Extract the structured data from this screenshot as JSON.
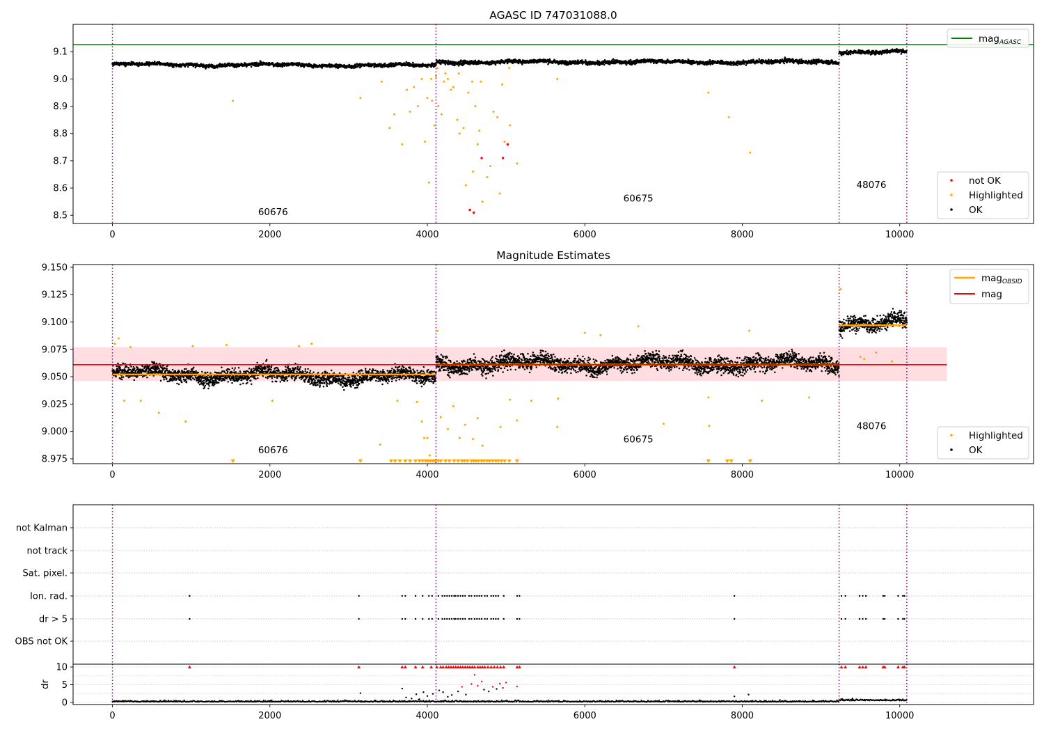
{
  "chart_data": [
    {
      "id": "p1",
      "type": "scatter",
      "title": "AGASC ID 747031088.0",
      "xlim": [
        -500,
        11700
      ],
      "ylim": [
        8.47,
        9.2
      ],
      "xticks": [
        0,
        2000,
        4000,
        6000,
        8000,
        10000
      ],
      "yticks": [
        8.5,
        8.6,
        8.7,
        8.8,
        8.9,
        9.0,
        9.1
      ],
      "ytick_labels": [
        "8.5",
        "8.6",
        "8.7",
        "8.8",
        "8.9",
        "9.0",
        "9.1"
      ],
      "hline": {
        "name": "mag_AGASC",
        "y": 9.126,
        "color": "#008000"
      },
      "obsid_boundaries": [
        0,
        4110,
        9230,
        10090
      ],
      "obsid_labels": [
        {
          "text": "60676",
          "x": 2040,
          "y": 8.5
        },
        {
          "text": "60675",
          "x": 6680,
          "y": 8.55
        },
        {
          "text": "48076",
          "x": 9640,
          "y": 8.6
        }
      ],
      "segments": [
        {
          "x0": 0,
          "x1": 4110,
          "center": 9.053,
          "spread": 0.009,
          "trend": -0.004
        },
        {
          "x0": 4110,
          "x1": 9230,
          "center": 9.062,
          "spread": 0.01,
          "trend": 0.0
        },
        {
          "x0": 9230,
          "x1": 10090,
          "center": 9.1,
          "spread": 0.01,
          "trend": 0.0
        }
      ],
      "highlighted": [
        [
          1530,
          8.92
        ],
        [
          3150,
          8.93
        ],
        [
          3420,
          8.99
        ],
        [
          3520,
          8.82
        ],
        [
          3580,
          8.87
        ],
        [
          3680,
          8.76
        ],
        [
          3780,
          8.88
        ],
        [
          3830,
          8.97
        ],
        [
          3880,
          8.9
        ],
        [
          3930,
          9.0
        ],
        [
          3970,
          8.77
        ],
        [
          4020,
          8.62
        ],
        [
          4060,
          8.92
        ],
        [
          4090,
          8.83
        ],
        [
          4140,
          8.9
        ],
        [
          4180,
          8.87
        ],
        [
          4210,
          8.99
        ],
        [
          4260,
          9.0
        ],
        [
          4330,
          8.97
        ],
        [
          4380,
          8.85
        ],
        [
          4410,
          8.8
        ],
        [
          4460,
          8.82
        ],
        [
          4490,
          8.61
        ],
        [
          4520,
          8.95
        ],
        [
          4580,
          8.66
        ],
        [
          4610,
          8.9
        ],
        [
          4640,
          8.76
        ],
        [
          4660,
          8.81
        ],
        [
          4700,
          8.55
        ],
        [
          4760,
          8.64
        ],
        [
          4800,
          8.68
        ],
        [
          4840,
          8.88
        ],
        [
          4890,
          8.86
        ],
        [
          4920,
          8.58
        ],
        [
          4980,
          8.77
        ],
        [
          5050,
          8.83
        ],
        [
          5140,
          8.69
        ],
        [
          5650,
          9.0
        ],
        [
          7570,
          8.95
        ],
        [
          7830,
          8.86
        ],
        [
          8100,
          8.73
        ],
        [
          4050,
          9.0
        ],
        [
          4110,
          9.01
        ],
        [
          4300,
          8.96
        ],
        [
          4570,
          8.99
        ],
        [
          3740,
          8.96
        ],
        [
          4000,
          8.93
        ],
        [
          4130,
          9.04
        ],
        [
          4230,
          9.02
        ],
        [
          4400,
          9.02
        ],
        [
          4680,
          8.99
        ],
        [
          4950,
          8.98
        ],
        [
          5040,
          9.04
        ]
      ],
      "not_ok": [
        [
          4540,
          8.52
        ],
        [
          4590,
          8.51
        ],
        [
          4690,
          8.71
        ],
        [
          4960,
          8.71
        ],
        [
          5020,
          8.76
        ]
      ],
      "legend": [
        "not OK",
        "Highlighted",
        "OK"
      ],
      "colors": {
        "ok": "#000000",
        "highlighted": "#ffa500",
        "not_ok": "#ff0000",
        "boundary": "#800080"
      }
    },
    {
      "id": "p2",
      "type": "scatter",
      "title": "Magnitude Estimates",
      "xlim": [
        -500,
        11700
      ],
      "ylim": [
        8.9705,
        9.1525
      ],
      "xticks": [
        0,
        2000,
        4000,
        6000,
        8000,
        10000
      ],
      "yticks": [
        8.975,
        9.0,
        9.025,
        9.05,
        9.075,
        9.1,
        9.125,
        9.15
      ],
      "ytick_labels": [
        "8.975",
        "9.000",
        "9.025",
        "9.050",
        "9.075",
        "9.100",
        "9.125",
        "9.150"
      ],
      "mag": {
        "name": "mag",
        "y": 9.061,
        "band": [
          9.046,
          9.077
        ],
        "x_extent": [
          -500,
          10600
        ],
        "color": "#ff0000"
      },
      "mag_obsid": [
        {
          "x0": 0,
          "x1": 4110,
          "y": 9.052
        },
        {
          "x0": 4110,
          "x1": 9230,
          "y": 9.061
        },
        {
          "x0": 9230,
          "x1": 10090,
          "y": 9.097
        }
      ],
      "obsid_boundaries": [
        0,
        4110,
        9230,
        10090
      ],
      "obsid_labels": [
        {
          "text": "60676",
          "x": 2040,
          "y": 8.98
        },
        {
          "text": "60675",
          "x": 6680,
          "y": 8.99
        },
        {
          "text": "48076",
          "x": 9640,
          "y": 9.002
        }
      ],
      "segments": [
        {
          "x0": 0,
          "x1": 4110,
          "center": 9.053,
          "spread": 0.009,
          "trend": -0.004
        },
        {
          "x0": 4110,
          "x1": 9230,
          "center": 9.062,
          "spread": 0.01,
          "trend": 0.0
        },
        {
          "x0": 9230,
          "x1": 10090,
          "center": 9.1,
          "spread": 0.01,
          "trend": 0.0
        }
      ],
      "highlighted": [
        [
          30,
          9.08
        ],
        [
          80,
          9.085
        ],
        [
          150,
          9.028
        ],
        [
          230,
          9.077
        ],
        [
          360,
          9.028
        ],
        [
          590,
          9.017
        ],
        [
          930,
          9.009
        ],
        [
          1020,
          9.078
        ],
        [
          1450,
          9.079
        ],
        [
          2030,
          9.028
        ],
        [
          2370,
          9.078
        ],
        [
          2530,
          9.08
        ],
        [
          3400,
          8.988
        ],
        [
          3620,
          9.028
        ],
        [
          3870,
          9.027
        ],
        [
          3930,
          9.009
        ],
        [
          3960,
          8.994
        ],
        [
          4000,
          8.994
        ],
        [
          4030,
          8.978
        ],
        [
          4130,
          9.092
        ],
        [
          4170,
          9.013
        ],
        [
          4260,
          9.002
        ],
        [
          4330,
          9.023
        ],
        [
          4410,
          8.994
        ],
        [
          4480,
          9.006
        ],
        [
          4580,
          8.993
        ],
        [
          4640,
          9.012
        ],
        [
          4700,
          8.987
        ],
        [
          4930,
          9.004
        ],
        [
          5050,
          9.029
        ],
        [
          5140,
          9.01
        ],
        [
          5320,
          9.028
        ],
        [
          5650,
          9.004
        ],
        [
          5660,
          9.03
        ],
        [
          6000,
          9.09
        ],
        [
          6200,
          9.088
        ],
        [
          6680,
          9.096
        ],
        [
          7000,
          9.007
        ],
        [
          7570,
          9.031
        ],
        [
          7580,
          9.005
        ],
        [
          8090,
          9.092
        ],
        [
          8250,
          9.028
        ],
        [
          8850,
          9.031
        ],
        [
          9250,
          9.13
        ],
        [
          9500,
          9.068
        ],
        [
          9550,
          9.066
        ],
        [
          9700,
          9.072
        ],
        [
          9900,
          9.064
        ],
        [
          10080,
          9.127
        ]
      ],
      "below_axis": [
        1530,
        3150,
        3540,
        3590,
        3650,
        3720,
        3780,
        3850,
        3900,
        3940,
        3980,
        4010,
        4040,
        4070,
        4100,
        4140,
        4170,
        4230,
        4280,
        4340,
        4390,
        4440,
        4470,
        4510,
        4560,
        4590,
        4620,
        4650,
        4690,
        4720,
        4760,
        4790,
        4830,
        4870,
        4900,
        4940,
        4980,
        5040,
        5140,
        7570,
        7810,
        7860,
        8100
      ],
      "legend": [
        "mag_OBSID",
        "mag",
        "Highlighted",
        "OK"
      ],
      "colors": {
        "ok": "#000000",
        "highlighted": "#ffa500",
        "mag": "#ff0000",
        "mag_obsid": "#ffa500",
        "band": "#ffdde0",
        "boundary": "#800080"
      }
    },
    {
      "id": "p3",
      "type": "scatter",
      "title": "",
      "xlim": [
        -500,
        11700
      ],
      "xticks": [
        0,
        2000,
        4000,
        6000,
        8000,
        10000
      ],
      "flag_labels": [
        "not Kalman",
        "not track",
        "Sat. pixel.",
        "Ion. rad.",
        "dr > 5",
        "OBS not OK"
      ],
      "flag_points": {
        "Ion. rad.": [
          980,
          3130,
          3680,
          3720,
          3850,
          3940,
          4020,
          4060,
          4140,
          4190,
          4220,
          4250,
          4280,
          4310,
          4340,
          4360,
          4390,
          4420,
          4450,
          4480,
          4530,
          4560,
          4600,
          4630,
          4660,
          4690,
          4730,
          4760,
          4810,
          4840,
          4870,
          4900,
          4970,
          5140,
          5170,
          7900,
          9260,
          9310,
          9490,
          9530,
          9570,
          9790,
          9810,
          9980,
          10040,
          10060
        ],
        "dr > 5": [
          980,
          3130,
          3680,
          3720,
          3850,
          3940,
          4020,
          4060,
          4140,
          4190,
          4220,
          4250,
          4280,
          4310,
          4340,
          4360,
          4390,
          4420,
          4450,
          4480,
          4530,
          4560,
          4600,
          4630,
          4660,
          4690,
          4730,
          4760,
          4810,
          4840,
          4870,
          4900,
          4970,
          5140,
          5170,
          7900,
          9260,
          9310,
          9490,
          9530,
          9570,
          9790,
          9810,
          9980,
          10040,
          10060
        ]
      },
      "dr": {
        "ylabel": "dr",
        "ylim": [
          -0.6,
          10.8
        ],
        "yticks": [
          0,
          5,
          10
        ],
        "clip_value": 10,
        "clipped_x": [
          980,
          3130,
          3680,
          3720,
          3850,
          3940,
          4050,
          4120,
          4170,
          4200,
          4240,
          4270,
          4300,
          4330,
          4360,
          4390,
          4420,
          4450,
          4480,
          4510,
          4540,
          4570,
          4600,
          4640,
          4670,
          4700,
          4730,
          4770,
          4810,
          4850,
          4890,
          4930,
          4970,
          5140,
          5170,
          7900,
          9260,
          9310,
          9490,
          9530,
          9570,
          9790,
          9810,
          9980,
          10040,
          10060
        ],
        "high": [
          [
            3150,
            2.6
          ],
          [
            3680,
            3.9
          ],
          [
            3730,
            1.4
          ],
          [
            3800,
            1.1
          ],
          [
            3860,
            2.3
          ],
          [
            3900,
            0.9
          ],
          [
            3950,
            2.9
          ],
          [
            4000,
            1.8
          ],
          [
            4070,
            2.4
          ],
          [
            4150,
            3.4
          ],
          [
            4200,
            2.9
          ],
          [
            4260,
            1.6
          ],
          [
            4310,
            2.1
          ],
          [
            4390,
            3.1
          ],
          [
            4440,
            4.4
          ],
          [
            4490,
            2.2
          ],
          [
            4560,
            5.2
          ],
          [
            4600,
            7.8
          ],
          [
            4640,
            4.7
          ],
          [
            4690,
            5.9
          ],
          [
            4720,
            3.6
          ],
          [
            4780,
            3.1
          ],
          [
            4830,
            4.4
          ],
          [
            4880,
            3.8
          ],
          [
            4920,
            5.3
          ],
          [
            4960,
            4.1
          ],
          [
            5000,
            5.6
          ],
          [
            5140,
            4.5
          ],
          [
            7900,
            1.7
          ],
          [
            8080,
            2.2
          ],
          [
            9400,
            1.1
          ]
        ],
        "high_colors_red_from": 4.0
      },
      "colors": {
        "ok": "#000000",
        "flag": "#000000",
        "clipped": "#ff0000",
        "boundary": "#800080"
      }
    }
  ]
}
